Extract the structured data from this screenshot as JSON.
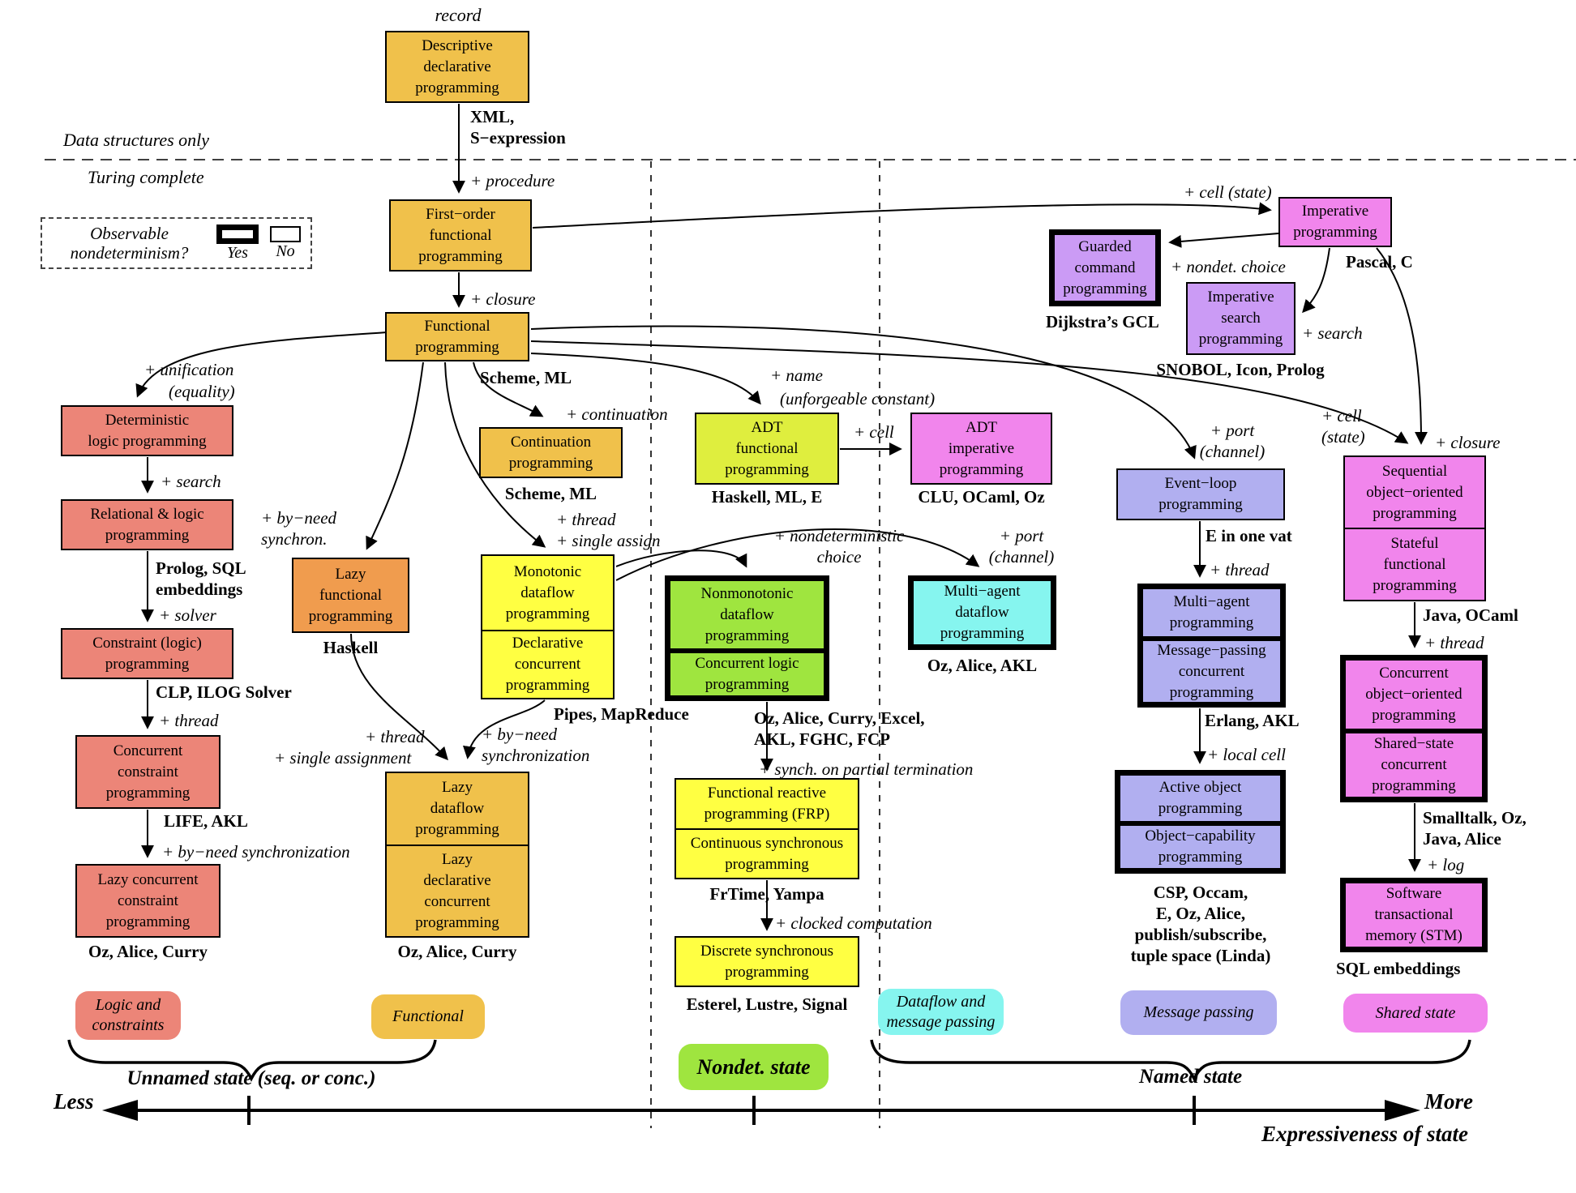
{
  "titles": {
    "record": "record",
    "data_structures_only": "Data structures only",
    "turing_complete": "Turing complete"
  },
  "legend": {
    "question_line1": "Observable",
    "question_line2": "nondeterminism?",
    "yes": "Yes",
    "no": "No"
  },
  "nodes": [
    {
      "id": "descriptive-declarative",
      "color": "amber",
      "border": "thin",
      "lines": [
        "Descriptive",
        "declarative",
        "programming"
      ]
    },
    {
      "id": "first-order-functional",
      "color": "amber",
      "border": "thin",
      "lines": [
        "First−order",
        "functional",
        "programming"
      ]
    },
    {
      "id": "functional",
      "color": "amber",
      "border": "thin",
      "lines": [
        "Functional",
        "programming"
      ]
    },
    {
      "id": "continuation",
      "color": "amber",
      "border": "thin",
      "lines": [
        "Continuation",
        "programming"
      ]
    },
    {
      "id": "deterministic-logic",
      "color": "salmon",
      "border": "thin",
      "lines": [
        "Deterministic",
        "logic programming"
      ]
    },
    {
      "id": "relational-logic",
      "color": "salmon",
      "border": "thin",
      "lines": [
        "Relational & logic",
        "programming"
      ]
    },
    {
      "id": "constraint-logic",
      "color": "salmon",
      "border": "thin",
      "lines": [
        "Constraint (logic)",
        "programming"
      ]
    },
    {
      "id": "concurrent-constraint",
      "color": "salmon",
      "border": "thin",
      "lines": [
        "Concurrent",
        "constraint",
        "programming"
      ]
    },
    {
      "id": "lazy-concurrent-constraint",
      "color": "salmon",
      "border": "thin",
      "lines": [
        "Lazy concurrent",
        "constraint",
        "programming"
      ]
    },
    {
      "id": "lazy-functional",
      "color": "orange",
      "border": "thin",
      "lines": [
        "Lazy",
        "functional",
        "programming"
      ]
    },
    {
      "id": "monotonic-dataflow",
      "color": "yellow",
      "border": "thin",
      "stack": [
        [
          "Monotonic",
          "dataflow",
          "programming"
        ],
        [
          "Declarative",
          "concurrent",
          "programming"
        ]
      ]
    },
    {
      "id": "lazy-dataflow",
      "color": "amber",
      "border": "thin",
      "stack": [
        [
          "Lazy",
          "dataflow",
          "programming"
        ],
        [
          "Lazy",
          "declarative",
          "concurrent",
          "programming"
        ]
      ]
    },
    {
      "id": "adt-functional",
      "color": "yellowgreen",
      "border": "thin",
      "lines": [
        "ADT",
        "functional",
        "programming"
      ]
    },
    {
      "id": "adt-imperative",
      "color": "pink",
      "border": "thin",
      "lines": [
        "ADT",
        "imperative",
        "programming"
      ]
    },
    {
      "id": "nonmonotonic-dataflow",
      "color": "green",
      "border": "thick",
      "stack": [
        [
          "Nonmonotonic",
          "dataflow",
          "programming"
        ],
        [
          "Concurrent logic",
          "programming"
        ]
      ]
    },
    {
      "id": "frp",
      "color": "yellow",
      "border": "thin",
      "stack": [
        [
          "Functional reactive",
          "programming (FRP)"
        ],
        [
          "Continuous synchronous",
          "programming"
        ]
      ]
    },
    {
      "id": "discrete-synchronous",
      "color": "yellow",
      "border": "thin",
      "lines": [
        "Discrete synchronous",
        "programming"
      ]
    },
    {
      "id": "multi-agent-dataflow",
      "color": "cyan",
      "border": "thick",
      "lines": [
        "Multi−agent",
        "dataflow",
        "programming"
      ]
    },
    {
      "id": "event-loop",
      "color": "lavender",
      "border": "thin",
      "lines": [
        "Event−loop",
        "programming"
      ]
    },
    {
      "id": "multi-agent",
      "color": "lavender",
      "border": "thick",
      "stack": [
        [
          "Multi−agent",
          "programming"
        ],
        [
          "Message−passing",
          "concurrent",
          "programming"
        ]
      ]
    },
    {
      "id": "active-object",
      "color": "lavender",
      "border": "thick",
      "stack": [
        [
          "Active object",
          "programming"
        ],
        [
          "Object−capability",
          "programming"
        ]
      ]
    },
    {
      "id": "imperative",
      "color": "pink",
      "border": "thin",
      "lines": [
        "Imperative",
        "programming"
      ]
    },
    {
      "id": "guarded-command",
      "color": "purple",
      "border": "thick",
      "lines": [
        "Guarded",
        "command",
        "programming"
      ]
    },
    {
      "id": "imperative-search",
      "color": "purple",
      "border": "thin",
      "lines": [
        "Imperative",
        "search",
        "programming"
      ]
    },
    {
      "id": "sequential-oo",
      "color": "pink",
      "border": "thin",
      "stack": [
        [
          "Sequential",
          "object−oriented",
          "programming"
        ],
        [
          "Stateful",
          "functional",
          "programming"
        ]
      ]
    },
    {
      "id": "concurrent-oo",
      "color": "pink",
      "border": "thick",
      "stack": [
        [
          "Concurrent",
          "object−oriented",
          "programming"
        ],
        [
          "Shared−state",
          "concurrent",
          "programming"
        ]
      ]
    },
    {
      "id": "stm",
      "color": "pink",
      "border": "thick",
      "lines": [
        "Software",
        "transactional",
        "memory (STM)"
      ]
    }
  ],
  "labels": [
    {
      "id": "record",
      "kind": "header",
      "lines": [
        "record"
      ]
    },
    {
      "id": "data-structures-only",
      "kind": "header",
      "lines": [
        "Data structures only"
      ]
    },
    {
      "id": "turing-complete",
      "kind": "header",
      "lines": [
        "Turing complete"
      ]
    },
    {
      "id": "xml-sexpression",
      "kind": "lang",
      "lines": [
        "XML,",
        "S−expression"
      ]
    },
    {
      "id": "plus-procedure",
      "kind": "op",
      "lines": [
        "+ procedure"
      ]
    },
    {
      "id": "plus-closure-1",
      "kind": "op",
      "lines": [
        "+ closure"
      ]
    },
    {
      "id": "scheme-ml-1",
      "kind": "lang",
      "lines": [
        "Scheme, ML"
      ]
    },
    {
      "id": "plus-continuation",
      "kind": "op",
      "lines": [
        "+ continuation"
      ]
    },
    {
      "id": "scheme-ml-2",
      "kind": "lang",
      "lines": [
        "Scheme, ML"
      ]
    },
    {
      "id": "plus-unification",
      "kind": "op",
      "lines": [
        "+ unification"
      ]
    },
    {
      "id": "equality",
      "kind": "op",
      "lines": [
        "(equality)"
      ]
    },
    {
      "id": "plus-search-1",
      "kind": "op",
      "lines": [
        "+ search"
      ]
    },
    {
      "id": "prolog-sql",
      "kind": "lang",
      "lines": [
        "Prolog, SQL",
        "embeddings"
      ]
    },
    {
      "id": "plus-solver",
      "kind": "op",
      "lines": [
        "+ solver"
      ]
    },
    {
      "id": "clp-ilog",
      "kind": "lang",
      "lines": [
        "CLP, ILOG Solver"
      ]
    },
    {
      "id": "plus-thread-1",
      "kind": "op",
      "lines": [
        "+ thread"
      ]
    },
    {
      "id": "life-akl",
      "kind": "lang",
      "lines": [
        "LIFE, AKL"
      ]
    },
    {
      "id": "plus-byneed-1",
      "kind": "op",
      "lines": [
        "+ by−need synchronization"
      ]
    },
    {
      "id": "oz-alice-curry-1",
      "kind": "lang",
      "lines": [
        "Oz, Alice, Curry"
      ]
    },
    {
      "id": "plus-byneed-2",
      "kind": "op",
      "lines": [
        "+ by−need",
        "synchron."
      ]
    },
    {
      "id": "haskell",
      "kind": "lang",
      "lines": [
        "Haskell"
      ]
    },
    {
      "id": "plus-thread-2",
      "kind": "op",
      "lines": [
        "+ thread"
      ]
    },
    {
      "id": "plus-single-assignment",
      "kind": "op",
      "lines": [
        "+ single assignment"
      ]
    },
    {
      "id": "plus-byneed-3",
      "kind": "op",
      "lines": [
        "+ by−need",
        "synchronization"
      ]
    },
    {
      "id": "plus-thread-sa",
      "kind": "op",
      "lines": [
        "+ thread",
        "+ single assign"
      ]
    },
    {
      "id": "pipes-mapreduce",
      "kind": "lang",
      "lines": [
        "Pipes, MapReduce"
      ]
    },
    {
      "id": "oz-alice-curry-2",
      "kind": "lang",
      "lines": [
        "Oz, Alice, Curry"
      ]
    },
    {
      "id": "plus-name",
      "kind": "op",
      "lines": [
        "+ name"
      ]
    },
    {
      "id": "unforgeable",
      "kind": "op",
      "lines": [
        "(unforgeable constant)"
      ]
    },
    {
      "id": "haskell-ml-e",
      "kind": "lang",
      "lines": [
        "Haskell, ML, E"
      ]
    },
    {
      "id": "plus-cell-1",
      "kind": "op",
      "lines": [
        "+ cell"
      ]
    },
    {
      "id": "clu-ocaml-oz",
      "kind": "lang",
      "lines": [
        "CLU, OCaml, Oz"
      ]
    },
    {
      "id": "plus-nondet-1",
      "kind": "op",
      "lines": [
        "+ nondeterministic",
        "choice"
      ]
    },
    {
      "id": "oz-excel",
      "kind": "lang",
      "lines": [
        "Oz, Alice, Curry, Excel,",
        "AKL, FGHC, FCP"
      ]
    },
    {
      "id": "plus-synch-partial",
      "kind": "op",
      "lines": [
        "+ synch. on partial termination"
      ]
    },
    {
      "id": "frtime-yampa",
      "kind": "lang",
      "lines": [
        "FrTime, Yampa"
      ]
    },
    {
      "id": "plus-clocked",
      "kind": "op",
      "lines": [
        "+ clocked computation"
      ]
    },
    {
      "id": "esterel",
      "kind": "lang",
      "lines": [
        "Esterel, Lustre, Signal"
      ]
    },
    {
      "id": "plus-port-1",
      "kind": "op",
      "lines": [
        "+ port",
        "(channel)"
      ]
    },
    {
      "id": "oz-alice-akl",
      "kind": "lang",
      "lines": [
        "Oz, Alice, AKL"
      ]
    },
    {
      "id": "plus-port-2",
      "kind": "op",
      "lines": [
        "+ port",
        "(channel)"
      ]
    },
    {
      "id": "e-in-one-vat",
      "kind": "lang",
      "lines": [
        "E in one vat"
      ]
    },
    {
      "id": "plus-thread-3",
      "kind": "op",
      "lines": [
        "+ thread"
      ]
    },
    {
      "id": "erlang-akl",
      "kind": "lang",
      "lines": [
        "Erlang, AKL"
      ]
    },
    {
      "id": "plus-local-cell",
      "kind": "op",
      "lines": [
        "+ local cell"
      ]
    },
    {
      "id": "csp-occam",
      "kind": "lang",
      "lines": [
        "CSP, Occam,",
        "E, Oz, Alice,",
        "publish/subscribe,",
        "tuple space (Linda)"
      ]
    },
    {
      "id": "plus-cell-state-1",
      "kind": "op",
      "lines": [
        "+ cell (state)"
      ]
    },
    {
      "id": "pascal-c",
      "kind": "lang",
      "lines": [
        "Pascal, C"
      ]
    },
    {
      "id": "plus-nondet-2",
      "kind": "op",
      "lines": [
        "+ nondet. choice"
      ]
    },
    {
      "id": "dijkstra-gcl",
      "kind": "lang",
      "lines": [
        "Dijkstra’s GCL"
      ]
    },
    {
      "id": "snobol",
      "kind": "lang",
      "lines": [
        "SNOBOL, Icon, Prolog"
      ]
    },
    {
      "id": "plus-search-2",
      "kind": "op",
      "lines": [
        "+ search"
      ]
    },
    {
      "id": "plus-cell-state-2",
      "kind": "op",
      "lines": [
        "+ cell",
        "(state)"
      ]
    },
    {
      "id": "plus-closure-2",
      "kind": "op",
      "lines": [
        "+ closure"
      ]
    },
    {
      "id": "java-ocaml",
      "kind": "lang",
      "lines": [
        "Java, OCaml"
      ]
    },
    {
      "id": "plus-thread-4",
      "kind": "op",
      "lines": [
        "+ thread"
      ]
    },
    {
      "id": "smalltalk",
      "kind": "lang",
      "lines": [
        "Smalltalk, Oz,",
        "Java, Alice"
      ]
    },
    {
      "id": "plus-log",
      "kind": "op",
      "lines": [
        "+ log"
      ]
    },
    {
      "id": "sql-embeddings",
      "kind": "lang",
      "lines": [
        "SQL embeddings"
      ]
    },
    {
      "id": "unnamed-state",
      "kind": "axis",
      "lines": [
        "Unnamed state (seq. or conc.)"
      ]
    },
    {
      "id": "named-state",
      "kind": "axis",
      "lines": [
        "Named state"
      ]
    },
    {
      "id": "less",
      "kind": "axis-big",
      "lines": [
        "Less"
      ]
    },
    {
      "id": "more",
      "kind": "axis-big",
      "lines": [
        "More"
      ]
    },
    {
      "id": "expressiveness",
      "kind": "axis-big",
      "lines": [
        "Expressiveness of state"
      ]
    }
  ],
  "badges": [
    {
      "id": "logic-constraints",
      "color": "salmon",
      "lines": [
        "Logic and",
        "constraints"
      ]
    },
    {
      "id": "functional-group",
      "color": "amber",
      "lines": [
        "Functional"
      ]
    },
    {
      "id": "nondet-state",
      "color": "green",
      "big": true,
      "lines": [
        "Nondet. state"
      ]
    },
    {
      "id": "dataflow-message-passing",
      "color": "cyan",
      "lines": [
        "Dataflow and",
        "message passing"
      ]
    },
    {
      "id": "message-passing-group",
      "color": "lavender",
      "lines": [
        "Message passing"
      ]
    },
    {
      "id": "shared-state-group",
      "color": "pink",
      "lines": [
        "Shared state"
      ]
    }
  ]
}
